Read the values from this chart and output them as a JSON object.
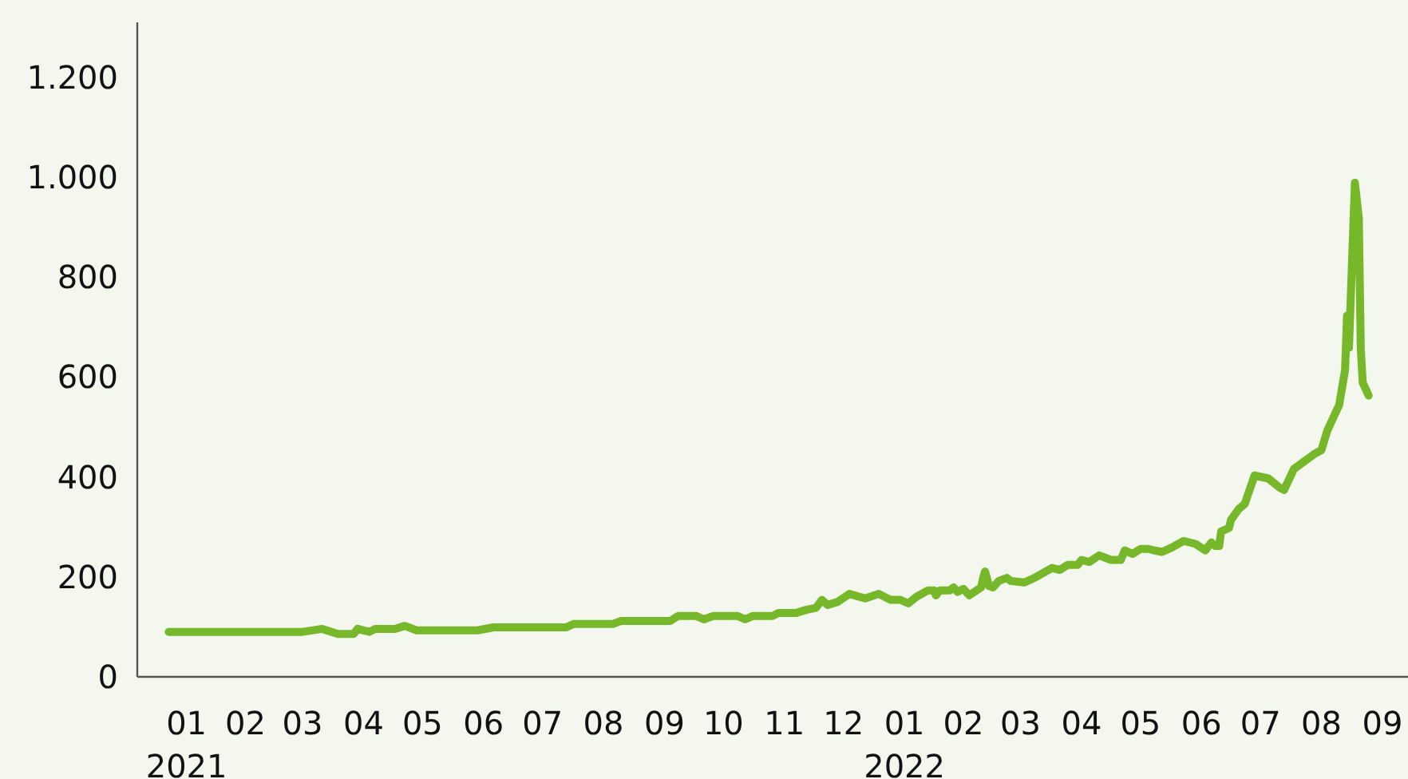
{
  "chart_data": {
    "type": "line",
    "x": [
      "2021-01-07",
      "2021-03-16",
      "2021-03-26",
      "2021-04-03",
      "2021-04-11",
      "2021-04-13",
      "2021-04-19",
      "2021-04-22",
      "2021-05-02",
      "2021-05-07",
      "2021-05-13",
      "2021-06-13",
      "2021-06-21",
      "2021-07-28",
      "2021-08-01",
      "2021-08-21",
      "2021-08-25",
      "2021-09-19",
      "2021-09-23",
      "2021-10-02",
      "2021-10-06",
      "2021-10-11",
      "2021-10-23",
      "2021-10-27",
      "2021-10-31",
      "2021-11-10",
      "2021-11-13",
      "2021-11-22",
      "2021-11-27",
      "2021-12-02",
      "2021-12-05",
      "2021-12-08",
      "2021-12-13",
      "2021-12-19",
      "2021-12-27",
      "2022-01-03",
      "2022-01-09",
      "2022-01-14",
      "2022-01-18",
      "2022-01-22",
      "2022-01-28",
      "2022-01-31",
      "2022-02-01",
      "2022-02-03",
      "2022-02-08",
      "2022-02-10",
      "2022-02-12",
      "2022-02-15",
      "2022-02-18",
      "2022-02-24",
      "2022-02-25",
      "2022-02-26",
      "2022-02-28",
      "2022-03-02",
      "2022-03-05",
      "2022-03-09",
      "2022-03-11",
      "2022-03-18",
      "2022-03-23",
      "2022-04-01",
      "2022-04-05",
      "2022-04-09",
      "2022-04-14",
      "2022-04-16",
      "2022-04-20",
      "2022-04-25",
      "2022-04-27",
      "2022-05-01",
      "2022-05-06",
      "2022-05-08",
      "2022-05-12",
      "2022-05-16",
      "2022-05-20",
      "2022-05-23",
      "2022-05-27",
      "2022-06-01",
      "2022-06-07",
      "2022-06-13",
      "2022-06-18",
      "2022-06-21",
      "2022-06-23",
      "2022-06-25",
      "2022-06-26",
      "2022-06-30",
      "2022-07-01",
      "2022-07-05",
      "2022-07-08",
      "2022-07-13",
      "2022-07-20",
      "2022-07-26",
      "2022-07-28",
      "2022-08-02",
      "2022-08-12",
      "2022-08-16",
      "2022-08-19",
      "2022-08-25",
      "2022-08-28",
      "2022-08-29",
      "2022-08-30",
      "2022-09-02",
      "2022-09-04",
      "2022-09-05",
      "2022-09-06",
      "2022-09-09"
    ],
    "series": [
      {
        "color": "#76b82a",
        "values": [
          90,
          90,
          96,
          86,
          86,
          96,
          90,
          96,
          96,
          102,
          93,
          93,
          99,
          99,
          106,
          106,
          112,
          112,
          122,
          122,
          115,
          122,
          122,
          115,
          122,
          122,
          128,
          128,
          134,
          138,
          154,
          144,
          150,
          166,
          157,
          166,
          154,
          154,
          147,
          160,
          173,
          173,
          163,
          173,
          173,
          179,
          170,
          176,
          163,
          179,
          198,
          211,
          182,
          179,
          192,
          198,
          192,
          189,
          198,
          218,
          214,
          224,
          224,
          234,
          230,
          243,
          240,
          234,
          234,
          253,
          246,
          256,
          256,
          253,
          250,
          259,
          272,
          266,
          253,
          269,
          262,
          262,
          291,
          298,
          314,
          336,
          346,
          403,
          397,
          378,
          374,
          416,
          445,
          454,
          493,
          544,
          614,
          723,
          659,
          989,
          918,
          656,
          589,
          563
        ]
      }
    ],
    "xlim": [
      "2020-12-22",
      "2022-09-29"
    ],
    "xticks": [
      {
        "value": "2021-01-16",
        "label": "01\n2021"
      },
      {
        "value": "2021-02-15",
        "label": "02"
      },
      {
        "value": "2021-03-16",
        "label": "03"
      },
      {
        "value": "2021-04-16",
        "label": "04"
      },
      {
        "value": "2021-05-16",
        "label": "05"
      },
      {
        "value": "2021-06-16",
        "label": "06"
      },
      {
        "value": "2021-07-16",
        "label": "07"
      },
      {
        "value": "2021-08-16",
        "label": "08"
      },
      {
        "value": "2021-09-16",
        "label": "09"
      },
      {
        "value": "2021-10-16",
        "label": "10"
      },
      {
        "value": "2021-11-16",
        "label": "11"
      },
      {
        "value": "2021-12-16",
        "label": "12"
      },
      {
        "value": "2022-01-16",
        "label": "01\n2022"
      },
      {
        "value": "2022-02-15",
        "label": "02"
      },
      {
        "value": "2022-03-16",
        "label": "03"
      },
      {
        "value": "2022-04-16",
        "label": "04"
      },
      {
        "value": "2022-05-16",
        "label": "05"
      },
      {
        "value": "2022-06-16",
        "label": "06"
      },
      {
        "value": "2022-07-16",
        "label": "07"
      },
      {
        "value": "2022-08-16",
        "label": "08"
      },
      {
        "value": "2022-09-16",
        "label": "09"
      }
    ],
    "ylim": [
      0,
      1310
    ],
    "yticks": [
      0,
      200,
      400,
      600,
      800,
      {
        "value": 1000,
        "label": "1.000"
      },
      {
        "value": 1200,
        "label": "1.200"
      }
    ],
    "grid": false,
    "marker": "none",
    "line_style": "solid"
  }
}
